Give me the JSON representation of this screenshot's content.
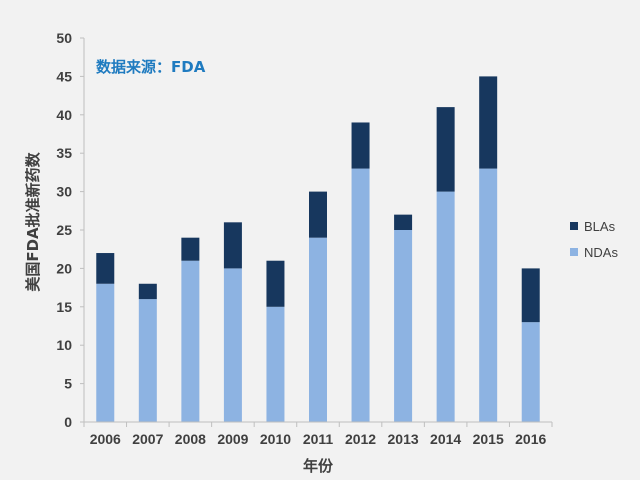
{
  "chart_data": {
    "type": "bar",
    "stacked": true,
    "categories": [
      "2006",
      "2007",
      "2008",
      "2009",
      "2010",
      "2011",
      "2012",
      "2013",
      "2014",
      "2015",
      "2016"
    ],
    "series": [
      {
        "name": "NDAs",
        "values": [
          18,
          16,
          21,
          20,
          15,
          24,
          33,
          25,
          30,
          33,
          13
        ],
        "color": "#8db3e2"
      },
      {
        "name": "BLAs",
        "values": [
          4,
          2,
          3,
          6,
          6,
          6,
          6,
          2,
          11,
          12,
          7
        ],
        "color": "#17375e"
      }
    ],
    "title": "",
    "annotation": "数据来源：FDA",
    "xlabel": "年份",
    "ylabel": "美国FDA批准新药数",
    "ylim": [
      0,
      50
    ],
    "yticks": [
      0,
      5,
      10,
      15,
      20,
      25,
      30,
      35,
      40,
      45,
      50
    ],
    "grid": false,
    "legend_position": "right"
  },
  "colors": {
    "background": "#f2f2f2",
    "annotation": "#1f7bc0",
    "axis": "#bfbfbf",
    "text": "#404040"
  }
}
